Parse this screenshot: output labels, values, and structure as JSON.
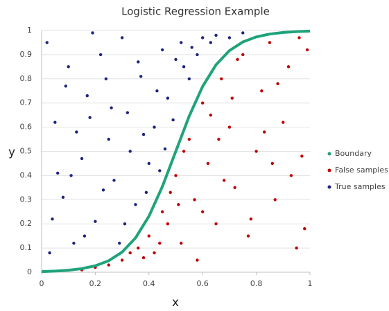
{
  "chart_data": {
    "type": "scatter",
    "title": "Logistic Regression Example",
    "x_label": "x",
    "y_label": "y",
    "xlim": [
      0,
      1
    ],
    "ylim": [
      0,
      1
    ],
    "xticks": [
      0,
      0.2,
      0.4,
      0.6,
      0.8,
      1
    ],
    "yticks": [
      0,
      0.1,
      0.2,
      0.3,
      0.4,
      0.5,
      0.6,
      0.7,
      0.8,
      0.9,
      1
    ],
    "grid": true,
    "legend": "right",
    "series": [
      {
        "name": "Boundary",
        "color": "#1fa37a",
        "line": true,
        "x": [
          0,
          0.05,
          0.1,
          0.15,
          0.2,
          0.25,
          0.3,
          0.35,
          0.4,
          0.45,
          0.5,
          0.55,
          0.6,
          0.65,
          0.7,
          0.75,
          0.8,
          0.85,
          0.9,
          0.95,
          1
        ],
        "values": [
          0.0025,
          0.0045,
          0.0082,
          0.0148,
          0.0266,
          0.0474,
          0.0832,
          0.1419,
          0.2315,
          0.3543,
          0.5,
          0.6457,
          0.7685,
          0.8581,
          0.9168,
          0.9526,
          0.9734,
          0.9852,
          0.9918,
          0.9955,
          0.9975
        ]
      },
      {
        "name": "False samples",
        "color": "#c00000",
        "line": false,
        "x": [
          0.15,
          0.2,
          0.25,
          0.3,
          0.33,
          0.36,
          0.4,
          0.42,
          0.45,
          0.48,
          0.5,
          0.52,
          0.55,
          0.57,
          0.6,
          0.62,
          0.65,
          0.67,
          0.7,
          0.72,
          0.75,
          0.77,
          0.8,
          0.82,
          0.85,
          0.87,
          0.9,
          0.92,
          0.95,
          0.97,
          0.99,
          0.53,
          0.58,
          0.63,
          0.68,
          0.73,
          0.78,
          0.83,
          0.88,
          0.93,
          0.98,
          0.44,
          0.38,
          0.47,
          0.6,
          0.71,
          0.86,
          0.96,
          0.51,
          0.66
        ],
        "values": [
          0.01,
          0.02,
          0.03,
          0.05,
          0.08,
          0.1,
          0.15,
          0.08,
          0.25,
          0.33,
          0.4,
          0.12,
          0.55,
          0.3,
          0.7,
          0.45,
          0.2,
          0.8,
          0.6,
          0.35,
          0.9,
          0.15,
          0.5,
          0.75,
          0.95,
          0.3,
          0.62,
          0.85,
          0.1,
          0.48,
          0.92,
          0.5,
          0.05,
          0.65,
          0.38,
          0.88,
          0.22,
          0.58,
          0.78,
          0.4,
          0.18,
          0.12,
          0.06,
          0.2,
          0.25,
          0.72,
          0.45,
          0.97,
          0.28,
          0.55
        ]
      },
      {
        "name": "True samples",
        "color": "#1c237f",
        "line": false,
        "x": [
          0.02,
          0.05,
          0.08,
          0.1,
          0.12,
          0.15,
          0.17,
          0.2,
          0.22,
          0.25,
          0.27,
          0.3,
          0.32,
          0.35,
          0.37,
          0.4,
          0.42,
          0.45,
          0.47,
          0.5,
          0.52,
          0.55,
          0.58,
          0.6,
          0.63,
          0.65,
          0.7,
          0.75,
          0.03,
          0.06,
          0.09,
          0.13,
          0.16,
          0.19,
          0.23,
          0.26,
          0.29,
          0.33,
          0.36,
          0.39,
          0.43,
          0.46,
          0.49,
          0.53,
          0.56,
          0.04,
          0.11,
          0.18,
          0.24,
          0.31,
          0.38,
          0.44
        ],
        "values": [
          0.95,
          0.62,
          0.31,
          0.85,
          0.12,
          0.47,
          0.73,
          0.21,
          0.9,
          0.55,
          0.38,
          0.97,
          0.66,
          0.28,
          0.81,
          0.45,
          0.6,
          0.92,
          0.72,
          0.88,
          0.95,
          0.8,
          0.9,
          0.97,
          0.95,
          0.98,
          0.97,
          0.99,
          0.08,
          0.41,
          0.77,
          0.58,
          0.15,
          0.99,
          0.34,
          0.68,
          0.12,
          0.5,
          0.87,
          0.33,
          0.75,
          0.51,
          0.63,
          0.85,
          0.93,
          0.22,
          0.4,
          0.64,
          0.8,
          0.2,
          0.57,
          0.42
        ]
      }
    ]
  }
}
